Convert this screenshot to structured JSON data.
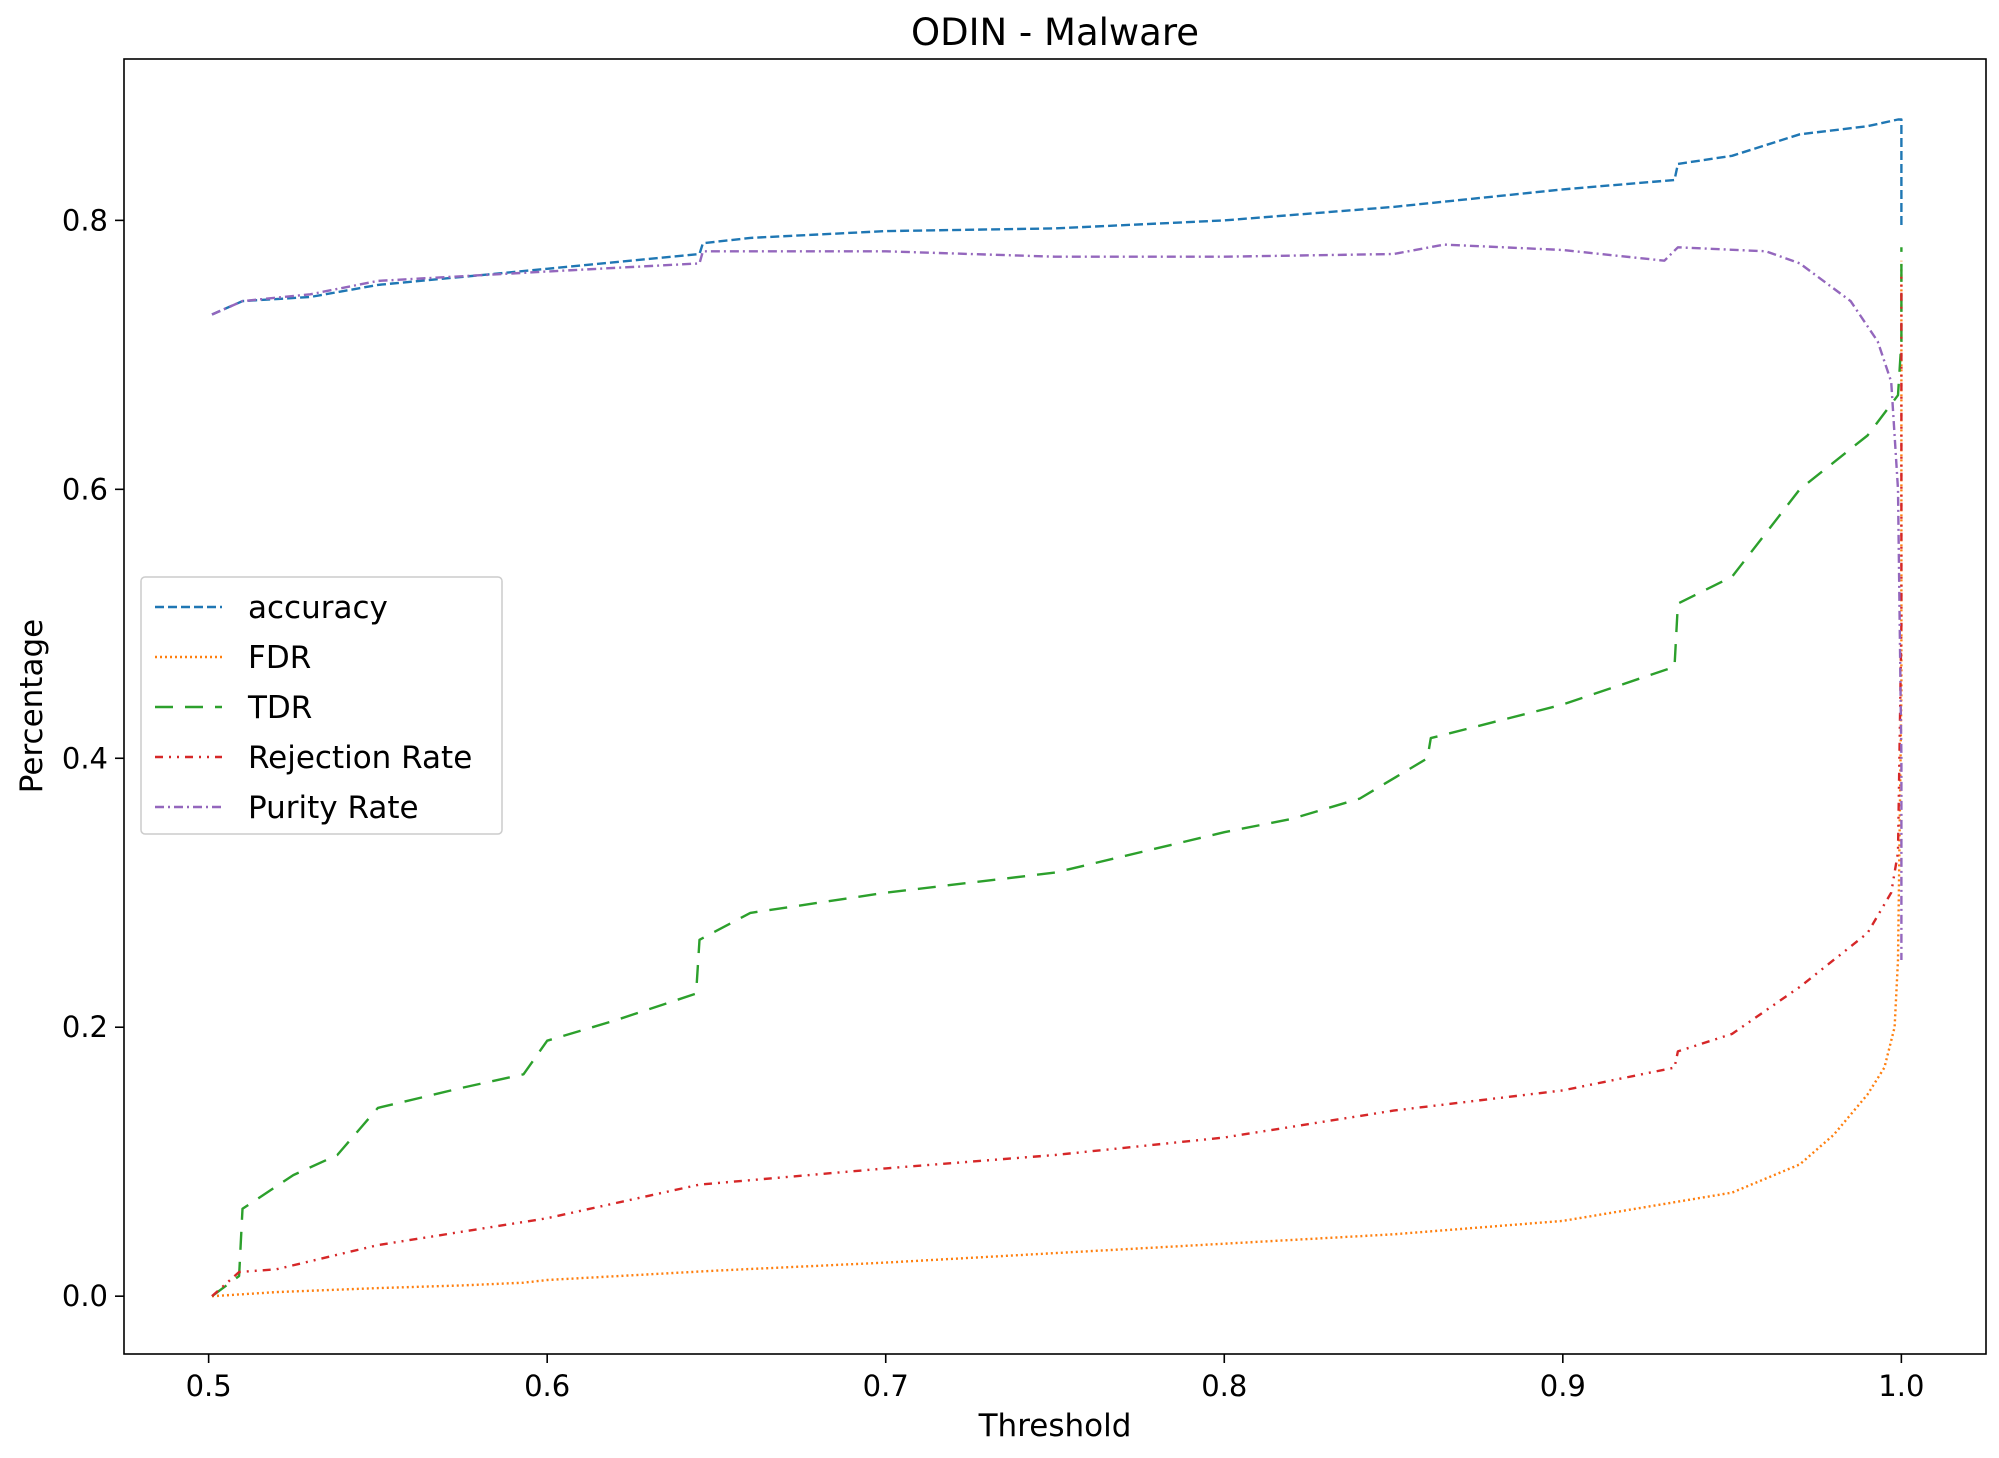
{
  "chart_data": {
    "type": "line",
    "title": "ODIN - Malware",
    "xlabel": "Threshold",
    "ylabel": "Percentage",
    "xlim": [
      0.475,
      1.025
    ],
    "ylim": [
      -0.043,
      0.92
    ],
    "xticks": [
      0.5,
      0.6,
      0.7,
      0.8,
      0.9,
      1.0
    ],
    "xtick_labels": [
      "0.5",
      "0.6",
      "0.7",
      "0.8",
      "0.9",
      "1.0"
    ],
    "yticks": [
      0.0,
      0.2,
      0.4,
      0.6,
      0.8
    ],
    "ytick_labels": [
      "0.0",
      "0.2",
      "0.4",
      "0.6",
      "0.8"
    ],
    "grid": false,
    "legend_position": "center-left",
    "series": [
      {
        "name": "accuracy",
        "color": "#1f77b4",
        "dash": "dashed",
        "x": [
          0.501,
          0.51,
          0.53,
          0.55,
          0.6,
          0.645,
          0.646,
          0.66,
          0.7,
          0.75,
          0.8,
          0.85,
          0.9,
          0.933,
          0.934,
          0.95,
          0.97,
          0.99,
          0.999,
          1.0,
          1.0
        ],
        "y": [
          0.73,
          0.74,
          0.743,
          0.752,
          0.764,
          0.775,
          0.783,
          0.787,
          0.792,
          0.794,
          0.8,
          0.81,
          0.823,
          0.83,
          0.842,
          0.848,
          0.864,
          0.87,
          0.875,
          0.875,
          0.795
        ]
      },
      {
        "name": "FDR",
        "color": "#ff7f0e",
        "dash": "dotted",
        "x": [
          0.501,
          0.52,
          0.55,
          0.575,
          0.593,
          0.6,
          0.65,
          0.7,
          0.75,
          0.8,
          0.85,
          0.9,
          0.95,
          0.97,
          0.98,
          0.99,
          0.995,
          0.998,
          0.999,
          1.0,
          1.0
        ],
        "y": [
          0.0,
          0.003,
          0.006,
          0.008,
          0.01,
          0.012,
          0.019,
          0.025,
          0.032,
          0.039,
          0.046,
          0.056,
          0.077,
          0.098,
          0.12,
          0.15,
          0.17,
          0.2,
          0.25,
          0.45,
          0.77
        ]
      },
      {
        "name": "TDR",
        "color": "#2ca02c",
        "dash": "longdash",
        "x": [
          0.501,
          0.509,
          0.51,
          0.525,
          0.538,
          0.55,
          0.575,
          0.593,
          0.6,
          0.62,
          0.644,
          0.645,
          0.66,
          0.7,
          0.75,
          0.8,
          0.82,
          0.84,
          0.86,
          0.861,
          0.9,
          0.933,
          0.934,
          0.95,
          0.97,
          0.99,
          0.999,
          1.0,
          1.0
        ],
        "y": [
          0.0,
          0.015,
          0.065,
          0.09,
          0.105,
          0.14,
          0.155,
          0.165,
          0.19,
          0.205,
          0.225,
          0.265,
          0.285,
          0.3,
          0.315,
          0.345,
          0.355,
          0.37,
          0.4,
          0.415,
          0.44,
          0.468,
          0.515,
          0.535,
          0.6,
          0.64,
          0.67,
          0.71,
          0.78
        ]
      },
      {
        "name": "Rejection Rate",
        "color": "#d62728",
        "dash": "dashdotdot",
        "x": [
          0.501,
          0.509,
          0.52,
          0.55,
          0.6,
          0.645,
          0.7,
          0.75,
          0.8,
          0.85,
          0.9,
          0.933,
          0.934,
          0.95,
          0.97,
          0.99,
          0.997,
          0.999,
          1.0,
          1.0
        ],
        "y": [
          0.0,
          0.018,
          0.02,
          0.038,
          0.058,
          0.083,
          0.095,
          0.105,
          0.118,
          0.138,
          0.153,
          0.17,
          0.182,
          0.195,
          0.23,
          0.27,
          0.3,
          0.33,
          0.5,
          0.76
        ]
      },
      {
        "name": "Purity Rate",
        "color": "#9467bd",
        "dash": "dashdot",
        "x": [
          0.501,
          0.51,
          0.53,
          0.55,
          0.6,
          0.645,
          0.646,
          0.7,
          0.75,
          0.8,
          0.85,
          0.865,
          0.9,
          0.93,
          0.934,
          0.96,
          0.97,
          0.985,
          0.993,
          0.997,
          0.999,
          1.0,
          1.0
        ],
        "y": [
          0.73,
          0.74,
          0.745,
          0.755,
          0.762,
          0.768,
          0.777,
          0.777,
          0.773,
          0.773,
          0.775,
          0.782,
          0.778,
          0.77,
          0.78,
          0.777,
          0.768,
          0.74,
          0.71,
          0.68,
          0.6,
          0.4,
          0.25
        ]
      }
    ]
  }
}
